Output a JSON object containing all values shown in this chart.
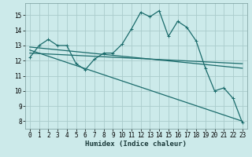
{
  "xlabel": "Humidex (Indice chaleur)",
  "bg_color": "#cceaea",
  "grid_color": "#aacccc",
  "line_color": "#1a6b6b",
  "xlim": [
    -0.5,
    23.5
  ],
  "ylim": [
    7.5,
    15.8
  ],
  "yticks": [
    8,
    9,
    10,
    11,
    12,
    13,
    14,
    15
  ],
  "xticks": [
    0,
    1,
    2,
    3,
    4,
    5,
    6,
    7,
    8,
    9,
    10,
    11,
    12,
    13,
    14,
    15,
    16,
    17,
    18,
    19,
    20,
    21,
    22,
    23
  ],
  "line1_x": [
    0,
    1,
    2,
    3,
    4,
    5,
    6,
    7,
    8,
    9,
    10,
    11,
    12,
    13,
    14,
    15,
    16,
    17,
    18,
    19,
    20,
    21,
    22,
    23
  ],
  "line1_y": [
    12.2,
    13.0,
    13.4,
    13.0,
    13.0,
    11.8,
    11.4,
    12.1,
    12.5,
    12.5,
    13.1,
    14.1,
    15.2,
    14.9,
    15.3,
    13.6,
    14.6,
    14.2,
    13.3,
    11.5,
    10.0,
    10.2,
    9.5,
    7.9
  ],
  "line2_x": [
    0,
    23
  ],
  "line2_y": [
    12.9,
    11.5
  ],
  "line3_x": [
    0,
    23
  ],
  "line3_y": [
    12.7,
    8.0
  ],
  "line4_x": [
    0,
    23
  ],
  "line4_y": [
    12.5,
    11.8
  ],
  "xlabel_fontsize": 6.5,
  "tick_fontsize": 5.5,
  "linewidth": 0.9,
  "marker_size": 2.5
}
